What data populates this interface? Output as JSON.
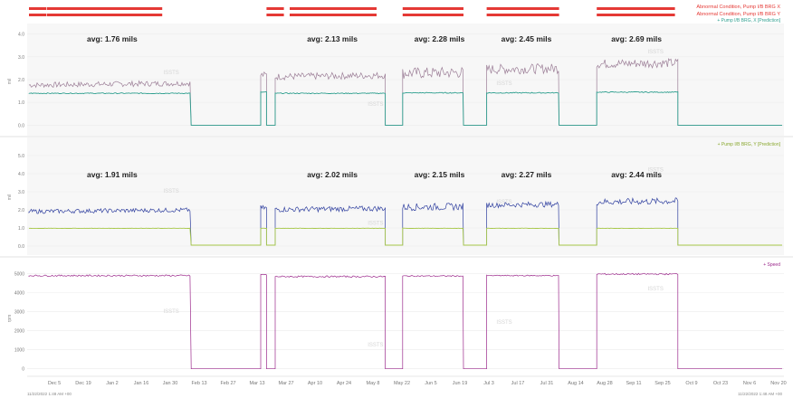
{
  "header": {
    "alarm_legend": [
      {
        "label": "Abnormal Condition, Pump I/B BRG X",
        "color": "#e53935"
      },
      {
        "label": "Abnormal Condition, Pump I/B BRG Y",
        "color": "#e53935"
      }
    ],
    "alarm_spans": [
      [
        0,
        0.6
      ],
      [
        0.62,
        4.6
      ],
      [
        8.2,
        8.8
      ],
      [
        9.0,
        12.0
      ],
      [
        12.9,
        15.0
      ],
      [
        15.8,
        18.3
      ],
      [
        19.6,
        22.3
      ]
    ]
  },
  "watermark": "ISSTS",
  "timestamp_start": "11/22/2022 1:48 AM +00",
  "timestamp_end": "11/22/2022 1:48 AM +00",
  "chart_data": [
    {
      "type": "line",
      "title": "",
      "legend": "+ Pump I/B BRG, X [Prediction]",
      "xlabel": "",
      "ylabel": "mil",
      "ylim": [
        -0.3,
        4.3
      ],
      "yticks": [
        0.0,
        1.0,
        2.0,
        3.0,
        4.0
      ],
      "xticks": [
        "Dec 5",
        "Dec 19",
        "Jan 2",
        "Jan 16",
        "Jan 30",
        "Feb 13",
        "Feb 27",
        "Mar 13",
        "Mar 27",
        "Apr 10",
        "Apr 24",
        "May 8",
        "May 22",
        "Jun 5",
        "Jun 19",
        "Jul 3",
        "Jul 17",
        "Jul 31",
        "Aug 14",
        "Aug 28",
        "Sep 11",
        "Sep 25",
        "Oct 9",
        "Oct 23",
        "Nov 6",
        "Nov 20"
      ],
      "segments": [
        [
          0,
          5.6
        ],
        [
          8.0,
          8.2
        ],
        [
          8.5,
          12.3
        ],
        [
          12.9,
          15.0
        ],
        [
          15.8,
          18.3
        ],
        [
          19.6,
          22.4
        ]
      ],
      "series": [
        {
          "name": "Pump I/B BRG X",
          "color": "#9b7d96",
          "levels": [
            1.76,
            2.2,
            2.13,
            2.28,
            2.45,
            2.69
          ],
          "noise": [
            0.12,
            0.15,
            0.15,
            0.25,
            0.22,
            0.2
          ],
          "off_value": 0.0
        },
        {
          "name": "Pump I/B BRG, X [Prediction]",
          "color": "#2f9f8f",
          "levels": [
            1.4,
            1.45,
            1.4,
            1.42,
            1.42,
            1.45
          ],
          "noise": [
            0.02,
            0.02,
            0.02,
            0.02,
            0.02,
            0.02
          ],
          "off_value": 0.0
        }
      ],
      "annotations": [
        "avg: 1.76 mils",
        "avg: 2.13 mils",
        "avg: 2.28 mils",
        "avg: 2.45 mils",
        "avg: 2.69 mils"
      ]
    },
    {
      "type": "line",
      "title": "",
      "legend": "+ Pump I/B BRG, Y [Prediction]",
      "xlabel": "",
      "ylabel": "mil",
      "ylim": [
        -0.3,
        5.6
      ],
      "yticks": [
        0.0,
        1.0,
        2.0,
        3.0,
        4.0,
        5.0
      ],
      "segments": [
        [
          0,
          5.6
        ],
        [
          8.0,
          8.2
        ],
        [
          8.5,
          12.3
        ],
        [
          12.9,
          15.0
        ],
        [
          15.8,
          18.3
        ],
        [
          19.6,
          22.4
        ]
      ],
      "series": [
        {
          "name": "Pump I/B BRG Y",
          "color": "#2f3f9f",
          "levels": [
            1.91,
            2.1,
            2.02,
            2.15,
            2.27,
            2.44
          ],
          "noise": [
            0.12,
            0.15,
            0.15,
            0.2,
            0.15,
            0.18
          ],
          "off_value": 0.05
        },
        {
          "name": "Pump I/B BRG, Y [Prediction]",
          "color": "#a8c84a",
          "levels": [
            0.98,
            0.98,
            0.98,
            0.98,
            0.98,
            0.98
          ],
          "noise": [
            0.01,
            0.01,
            0.01,
            0.01,
            0.01,
            0.01
          ],
          "off_value": 0.05
        }
      ],
      "annotations": [
        "avg: 1.91 mils",
        "avg: 2.02 mils",
        "avg: 2.15 mils",
        "avg: 2.27 mils",
        "avg: 2.44 mils"
      ]
    },
    {
      "type": "line",
      "title": "",
      "legend": "+ Speed",
      "xlabel": "",
      "ylabel": "rpm",
      "ylim": [
        -300,
        5600
      ],
      "yticks": [
        0,
        1000,
        2000,
        3000,
        4000,
        5000
      ],
      "segments": [
        [
          0,
          5.6
        ],
        [
          8.0,
          8.2
        ],
        [
          8.5,
          12.3
        ],
        [
          12.9,
          15.0
        ],
        [
          15.8,
          18.3
        ],
        [
          19.6,
          22.4
        ]
      ],
      "series": [
        {
          "name": "Speed",
          "color": "#9c2a8c",
          "levels": [
            4900,
            4950,
            4850,
            4880,
            4900,
            4980
          ],
          "noise": [
            40,
            40,
            40,
            30,
            30,
            40
          ],
          "off_value": 0
        }
      ],
      "annotations": []
    }
  ]
}
